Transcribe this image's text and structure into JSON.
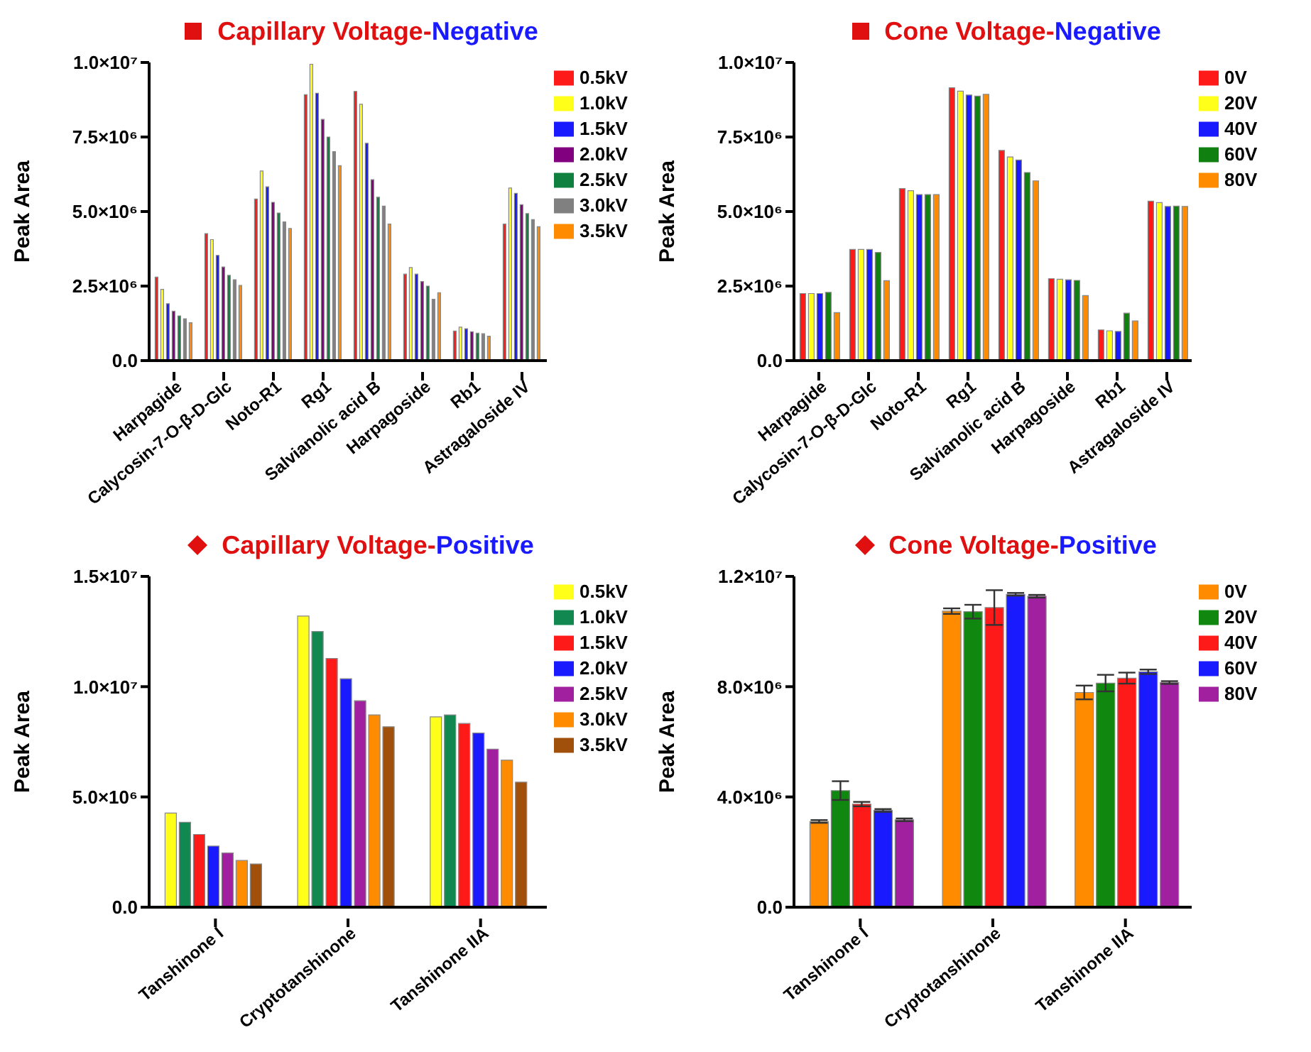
{
  "chart_data": [
    {
      "type": "bar",
      "title": "Capillary Voltage-Negative",
      "ylabel": "Peak Area",
      "categories": [
        "Harpagide",
        "Calycosin-7-O-β-D-Glc",
        "Noto-R1",
        "Rg1",
        "Salvianolic acid B",
        "Harpagoside",
        "Rb1",
        "Astragaloside IV"
      ],
      "ylim": [
        0,
        10000000
      ],
      "yticks": [
        {
          "value": 0,
          "label": "0.0"
        },
        {
          "value": 2500000,
          "label": "2.5×10⁶"
        },
        {
          "value": 5000000,
          "label": "5.0×10⁶"
        },
        {
          "value": 7500000,
          "label": "7.5×10⁶"
        },
        {
          "value": 10000000,
          "label": "1.0×10⁷"
        }
      ],
      "legend": "right",
      "grid": false,
      "series": [
        {
          "name": "0.5kV",
          "color": "#ff1a1a",
          "values": [
            2800000,
            4260000,
            5420000,
            8920000,
            9030000,
            2900000,
            990000,
            4580000
          ]
        },
        {
          "name": "1.0kV",
          "color": "#ffff1a",
          "values": [
            2390000,
            4060000,
            6360000,
            9940000,
            8600000,
            3120000,
            1120000,
            5790000
          ]
        },
        {
          "name": "1.5kV",
          "color": "#1a1aff",
          "values": [
            1910000,
            3530000,
            5830000,
            8970000,
            7290000,
            2900000,
            1070000,
            5610000
          ]
        },
        {
          "name": "2.0kV",
          "color": "#800080",
          "values": [
            1660000,
            3140000,
            5310000,
            8090000,
            6070000,
            2650000,
            970000,
            5230000
          ]
        },
        {
          "name": "2.5kV",
          "color": "#108040",
          "values": [
            1500000,
            2860000,
            4950000,
            7500000,
            5480000,
            2500000,
            920000,
            4930000
          ]
        },
        {
          "name": "3.0kV",
          "color": "#808080",
          "values": [
            1400000,
            2710000,
            4650000,
            7010000,
            5180000,
            2060000,
            900000,
            4730000
          ]
        },
        {
          "name": "3.5kV",
          "color": "#ff8c00",
          "values": [
            1270000,
            2520000,
            4430000,
            6540000,
            4580000,
            2280000,
            820000,
            4490000
          ]
        }
      ]
    },
    {
      "type": "bar",
      "title": "Cone Voltage-Negative",
      "ylabel": "Peak Area",
      "categories": [
        "Harpagide",
        "Calycosin-7-O-β-D-Glc",
        "Noto-R1",
        "Rg1",
        "Salvianolic acid B",
        "Harpagoside",
        "Rb1",
        "Astragaloside IV"
      ],
      "ylim": [
        0,
        10000000
      ],
      "yticks": [
        {
          "value": 0,
          "label": "0.0"
        },
        {
          "value": 2500000,
          "label": "2.5×10⁶"
        },
        {
          "value": 5000000,
          "label": "5.0×10⁶"
        },
        {
          "value": 7500000,
          "label": "7.5×10⁶"
        },
        {
          "value": 10000000,
          "label": "1.0×10⁷"
        }
      ],
      "legend": "right",
      "grid": false,
      "series": [
        {
          "name": "0V",
          "color": "#ff1a1a",
          "values": [
            2250000,
            3730000,
            5770000,
            9150000,
            7050000,
            2750000,
            1030000,
            5350000
          ]
        },
        {
          "name": "20V",
          "color": "#ffff1a",
          "values": [
            2250000,
            3730000,
            5700000,
            9040000,
            6830000,
            2730000,
            1000000,
            5300000
          ]
        },
        {
          "name": "40V",
          "color": "#1a1aff",
          "values": [
            2250000,
            3730000,
            5570000,
            8910000,
            6730000,
            2710000,
            980000,
            5170000
          ]
        },
        {
          "name": "60V",
          "color": "#108010",
          "values": [
            2290000,
            3630000,
            5570000,
            8870000,
            6310000,
            2690000,
            1590000,
            5180000
          ]
        },
        {
          "name": "80V",
          "color": "#ff8c00",
          "values": [
            1610000,
            2680000,
            5570000,
            8930000,
            6030000,
            2180000,
            1330000,
            5170000
          ]
        }
      ]
    },
    {
      "type": "bar",
      "title": "Capillary Voltage-Positive",
      "ylabel": "Peak Area",
      "categories": [
        "Tanshinone I",
        "Cryptotanshinone",
        "Tanshinone IIA"
      ],
      "ylim": [
        0,
        15000000
      ],
      "yticks": [
        {
          "value": 0,
          "label": "0.0"
        },
        {
          "value": 5000000,
          "label": "5.0×10⁶"
        },
        {
          "value": 10000000,
          "label": "1.0×10⁷"
        },
        {
          "value": 15000000,
          "label": "1.5×10⁷"
        }
      ],
      "legend": "right",
      "grid": false,
      "series": [
        {
          "name": "0.5kV",
          "color": "#ffff1a",
          "values": [
            4270000,
            13200000,
            8630000
          ]
        },
        {
          "name": "1.0kV",
          "color": "#108850",
          "values": [
            3850000,
            12500000,
            8720000
          ]
        },
        {
          "name": "1.5kV",
          "color": "#ff1a1a",
          "values": [
            3300000,
            11280000,
            8330000
          ]
        },
        {
          "name": "2.0kV",
          "color": "#1a1aff",
          "values": [
            2770000,
            10360000,
            7900000
          ]
        },
        {
          "name": "2.5kV",
          "color": "#a020a0",
          "values": [
            2460000,
            9360000,
            7170000
          ]
        },
        {
          "name": "3.0kV",
          "color": "#ff8c00",
          "values": [
            2120000,
            8720000,
            6670000
          ]
        },
        {
          "name": "3.5kV",
          "color": "#a0500a",
          "values": [
            1960000,
            8180000,
            5670000
          ]
        }
      ]
    },
    {
      "type": "bar",
      "title": "Cone Voltage-Positive",
      "ylabel": "Peak Area",
      "categories": [
        "Tanshinone I",
        "Cryptotanshinone",
        "Tanshinone IIA"
      ],
      "ylim": [
        0,
        12000000
      ],
      "yticks": [
        {
          "value": 0,
          "label": "0.0"
        },
        {
          "value": 4000000,
          "label": "4.0×10⁶"
        },
        {
          "value": 8000000,
          "label": "8.0×10⁶"
        },
        {
          "value": 12000000,
          "label": "1.2×10⁷"
        }
      ],
      "legend": "right",
      "grid": false,
      "series": [
        {
          "name": "0V",
          "color": "#ff8c00",
          "values": [
            3110000,
            10740000,
            7790000
          ],
          "errors": [
            50000,
            100000,
            250000
          ]
        },
        {
          "name": "20V",
          "color": "#108810",
          "values": [
            4230000,
            10720000,
            8130000
          ],
          "errors": [
            340000,
            250000,
            300000
          ]
        },
        {
          "name": "40V",
          "color": "#ff1a1a",
          "values": [
            3740000,
            10870000,
            8310000
          ],
          "errors": [
            80000,
            630000,
            200000
          ]
        },
        {
          "name": "60V",
          "color": "#1a1aff",
          "values": [
            3510000,
            11350000,
            8540000
          ],
          "errors": [
            50000,
            50000,
            80000
          ]
        },
        {
          "name": "80V",
          "color": "#a020a0",
          "values": [
            3170000,
            11280000,
            8150000
          ],
          "errors": [
            50000,
            50000,
            50000
          ]
        }
      ]
    }
  ]
}
